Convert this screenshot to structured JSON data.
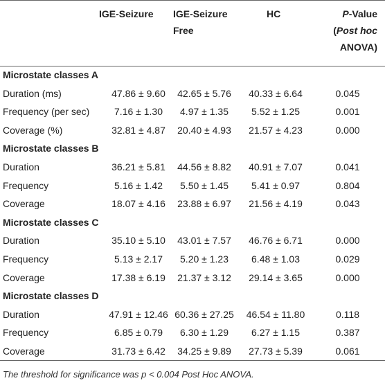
{
  "header": [
    "IGE-Seizure",
    "IGE-Seizure Free",
    "HC",
    [
      {
        "text": "P",
        "italic": true
      },
      {
        "text": "-Value "
      },
      {
        "text": "(",
        "italic": false
      },
      {
        "text": "Post hoc",
        "italic": true
      },
      {
        "text": " ANOVA)"
      }
    ]
  ],
  "groups": [
    {
      "title": "Microstate classes A",
      "rows": [
        [
          "Duration (ms)",
          "47.86 ± 9.60",
          "42.65 ± 5.76",
          "40.33 ± 6.64",
          "0.045"
        ],
        [
          "Frequency (per sec)",
          "7.16 ± 1.30",
          "4.97 ± 1.35",
          "5.52 ± 1.25",
          "0.001"
        ],
        [
          "Coverage (%)",
          "32.81 ± 4.87",
          "20.40 ± 4.93",
          "21.57 ± 4.23",
          "0.000"
        ]
      ]
    },
    {
      "title": "Microstate classes B",
      "rows": [
        [
          "Duration",
          "36.21 ± 5.81",
          "44.56 ± 8.82",
          "40.91 ± 7.07",
          "0.041"
        ],
        [
          "Frequency",
          "5.16 ± 1.42",
          "5.50 ± 1.45",
          "5.41 ± 0.97",
          "0.804"
        ],
        [
          "Coverage",
          "18.07 ± 4.16",
          "23.88 ± 6.97",
          "21.56 ± 4.19",
          "0.043"
        ]
      ]
    },
    {
      "title": "Microstate classes C",
      "rows": [
        [
          "Duration",
          "35.10 ± 5.10",
          "43.01 ± 7.57",
          "46.76 ± 6.71",
          "0.000"
        ],
        [
          "Frequency",
          "5.13 ± 2.17",
          "5.20 ± 1.23",
          "6.48 ± 1.03",
          "0.029"
        ],
        [
          "Coverage",
          "17.38 ± 6.19",
          "21.37 ± 3.12",
          "29.14 ± 3.65",
          "0.000"
        ]
      ]
    },
    {
      "title": "Microstate classes D",
      "rows": [
        [
          "Duration",
          "47.91 ± 12.46",
          "60.36 ± 27.25",
          "46.54 ± 11.80",
          "0.118"
        ],
        [
          "Frequency",
          "6.85 ± 0.79",
          "6.30 ± 1.29",
          "6.27 ± 1.15",
          "0.387"
        ],
        [
          "Coverage",
          "31.73 ± 6.42",
          "34.25 ± 9.89",
          "27.73 ± 5.39",
          "0.061"
        ]
      ]
    }
  ],
  "footnote": "The threshold for significance was p < 0.004 Post Hoc ANOVA."
}
